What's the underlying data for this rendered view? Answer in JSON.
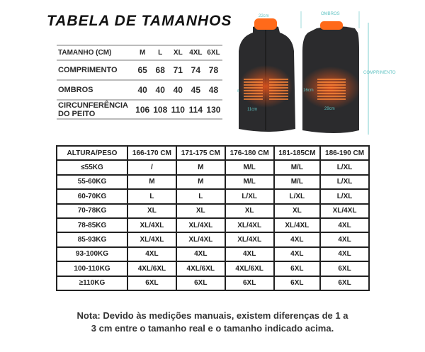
{
  "title": "TABELA DE TAMANHOS",
  "measurements": {
    "headers": [
      "TAMANHO (CM)",
      "M",
      "L",
      "XL",
      "4XL",
      "6XL"
    ],
    "rows": [
      {
        "label": "COMPRIMENTO",
        "values": [
          "65",
          "68",
          "71",
          "74",
          "78"
        ]
      },
      {
        "label": "OMBROS",
        "values": [
          "40",
          "40",
          "40",
          "45",
          "48"
        ]
      },
      {
        "label_line1": "CIRCUNFERÊNCIA",
        "label_line2": "DO PEITO",
        "values": [
          "106",
          "108",
          "110",
          "114",
          "130"
        ]
      }
    ]
  },
  "vest_diagram": {
    "front_collar": "22cm",
    "front_height": "14cm",
    "front_width": "11cm",
    "back_shoulders": "OMBROS",
    "back_height": "16cm",
    "back_width": "29cm",
    "length": "COMPRIMENTO",
    "vest_color": "#2b2b2d",
    "heater_color": "#ff7a1a",
    "dimension_color": "#5fc3c3"
  },
  "size_grid": {
    "headers": [
      "ALTURA/PESO",
      "166-170 CM",
      "171-175 CM",
      "176-180 CM",
      "181-185CM",
      "186-190 CM"
    ],
    "rows": [
      [
        "≤55KG",
        "/",
        "M",
        "M/L",
        "M/L",
        "L/XL"
      ],
      [
        "55-60KG",
        "M",
        "M",
        "M/L",
        "M/L",
        "L/XL"
      ],
      [
        "60-70KG",
        "L",
        "L",
        "L/XL",
        "L/XL",
        "L/XL"
      ],
      [
        "70-78KG",
        "XL",
        "XL",
        "XL",
        "XL",
        "XL/4XL"
      ],
      [
        "78-85KG",
        "XL/4XL",
        "XL/4XL",
        "XL/4XL",
        "XL/4XL",
        "4XL"
      ],
      [
        "85-93KG",
        "XL/4XL",
        "XL/4XL",
        "XL/4XL",
        "4XL",
        "4XL"
      ],
      [
        "93-100KG",
        "4XL",
        "4XL",
        "4XL",
        "4XL",
        "4XL"
      ],
      [
        "100-110KG",
        "4XL/6XL",
        "4XL/6XL",
        "4XL/6XL",
        "6XL",
        "6XL"
      ],
      [
        "≥110KG",
        "6XL",
        "6XL",
        "6XL",
        "6XL",
        "6XL"
      ]
    ]
  },
  "note": {
    "line1": "Nota: Devido às medições manuais, existem diferenças de 1 a",
    "line2": "3 cm entre o tamanho real e o tamanho indicado acima."
  }
}
